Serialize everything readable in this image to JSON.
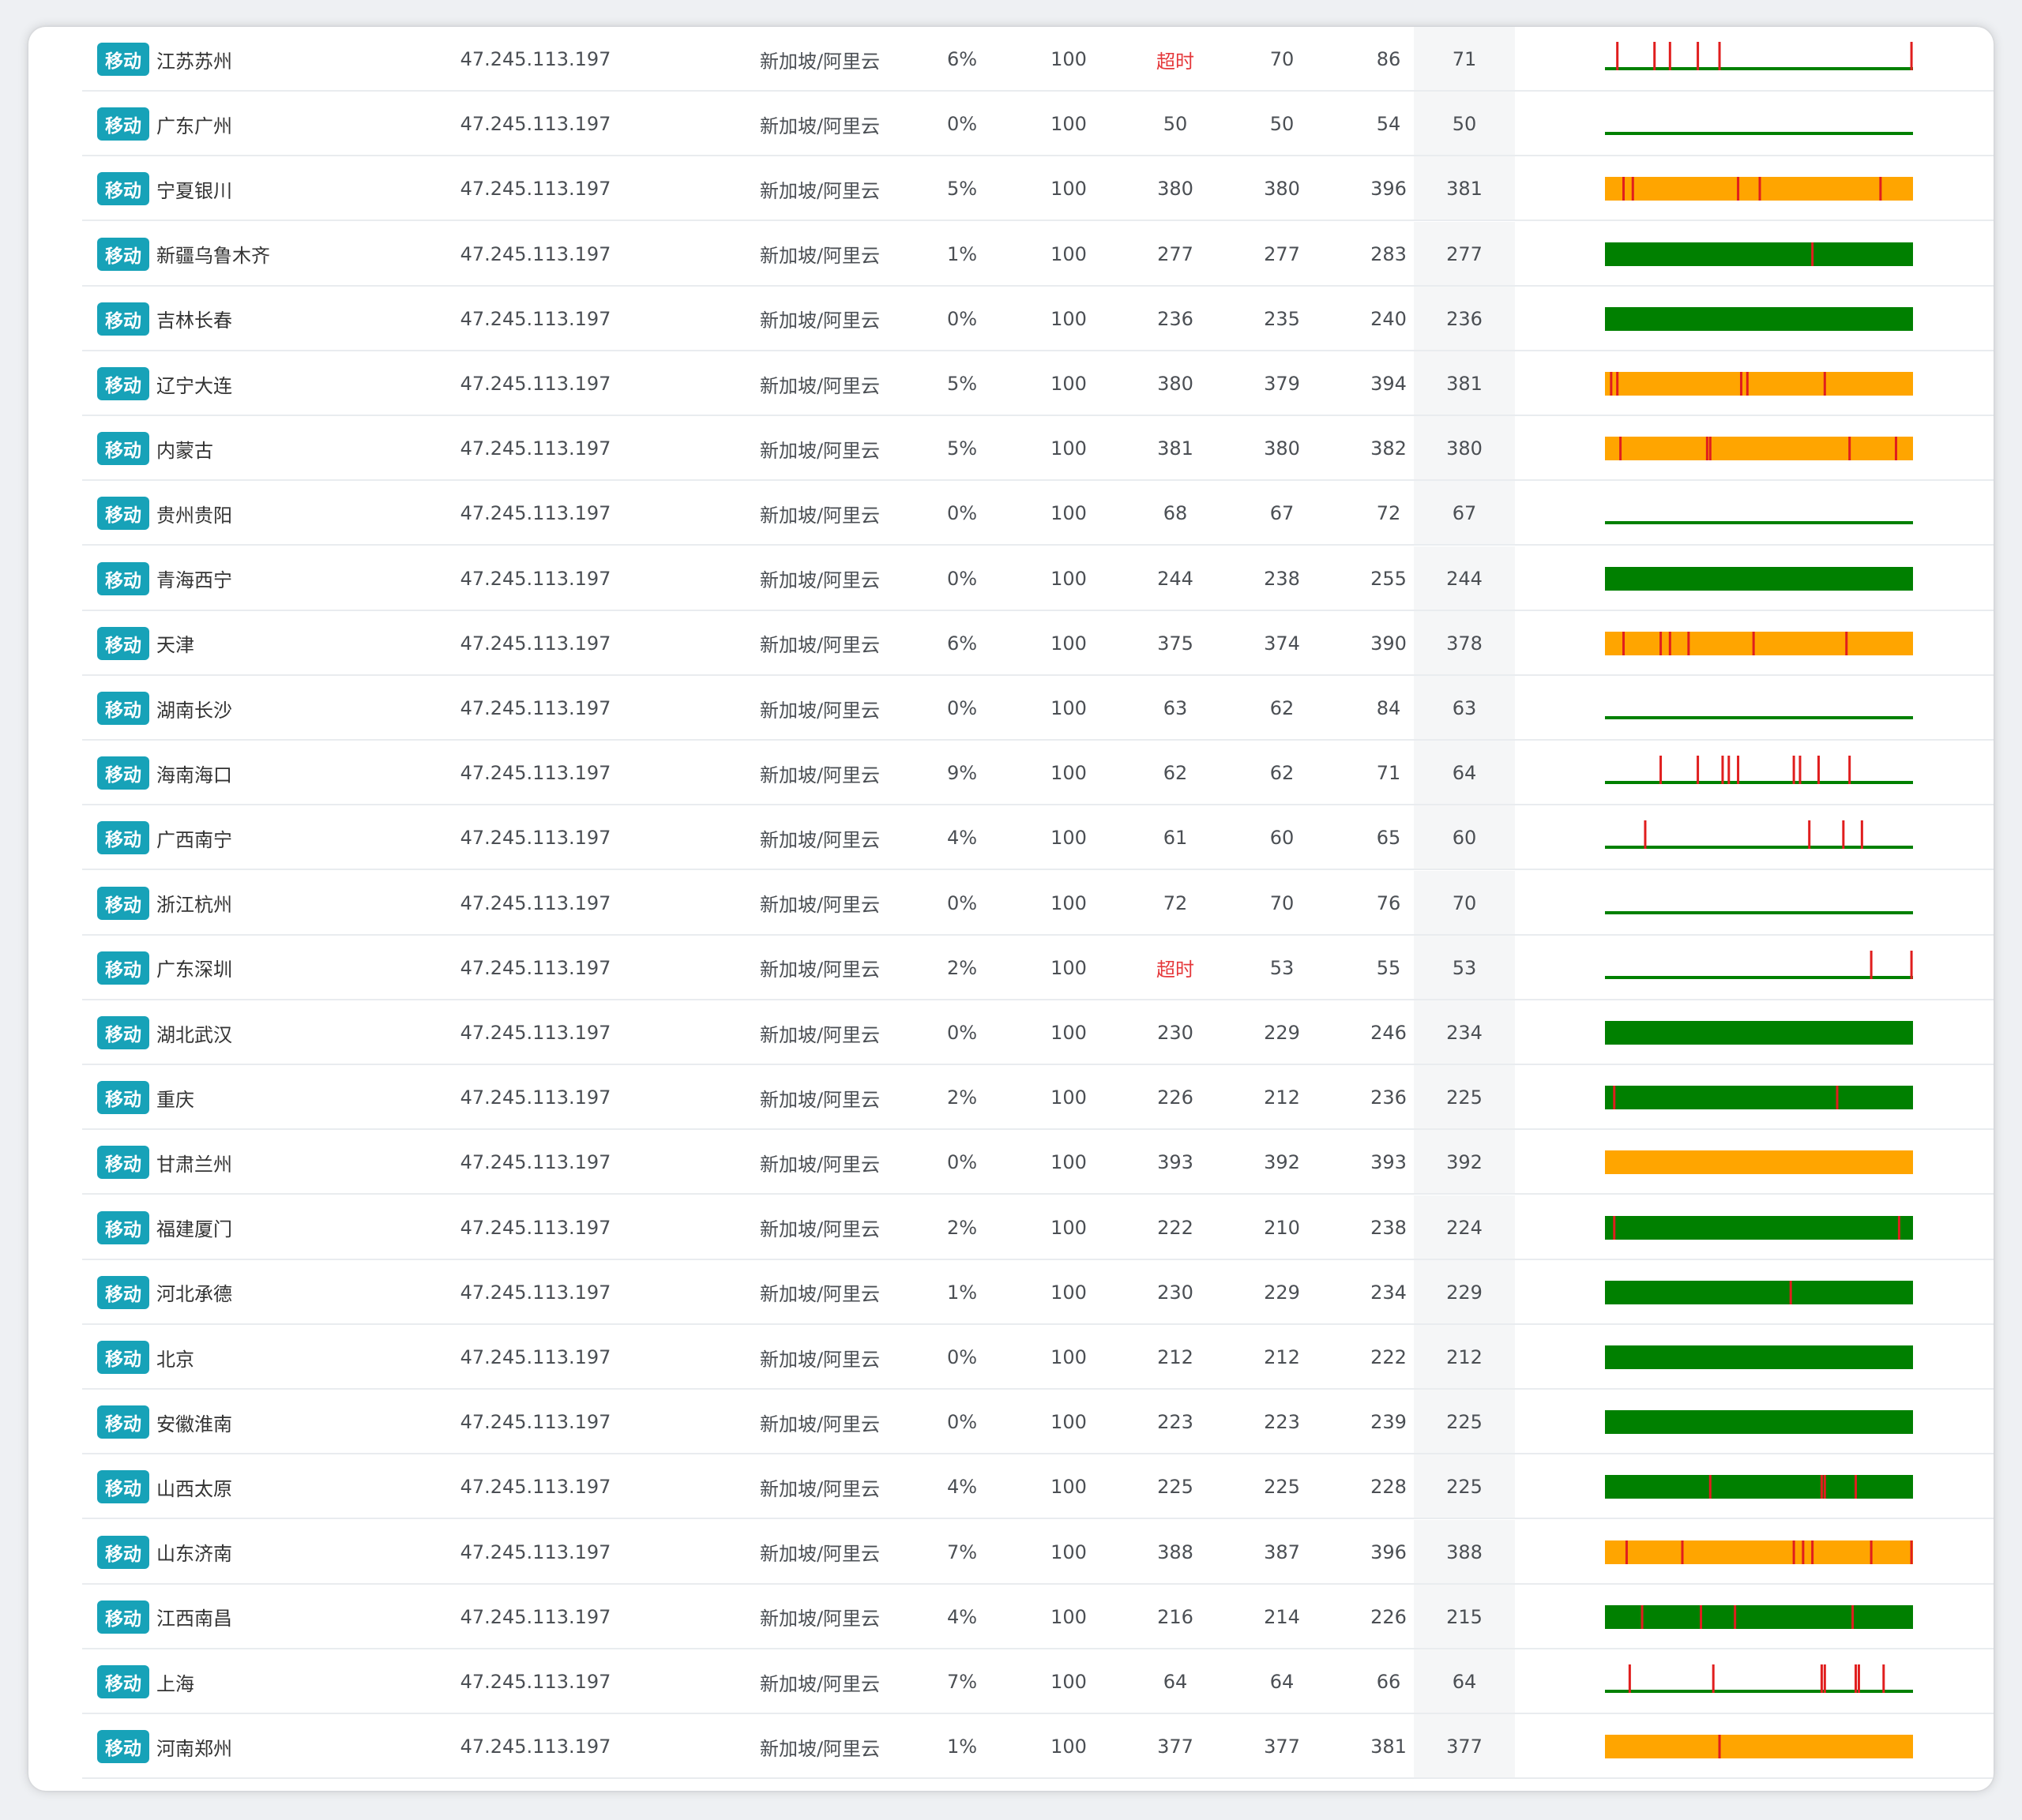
{
  "colors": {
    "badge": "#17a2b8",
    "ok": "#008000",
    "warn": "#ffa500",
    "loss": "#e01e1e",
    "timeout_text": "#e5383b"
  },
  "rows": [
    {
      "isp": "移动",
      "location": "江苏苏州",
      "ip": "47.245.113.197",
      "node": "新加坡/阿里云",
      "loss": "6%",
      "sent": "100",
      "last": "超时",
      "best": "70",
      "worst": "86",
      "avg": "71",
      "chart_color": "ok",
      "loss_marks": [
        0.04,
        0.16,
        0.21,
        0.3,
        0.37,
        0.99
      ]
    },
    {
      "isp": "移动",
      "location": "广东广州",
      "ip": "47.245.113.197",
      "node": "新加坡/阿里云",
      "loss": "0%",
      "sent": "100",
      "last": "50",
      "best": "50",
      "worst": "54",
      "avg": "50",
      "chart_color": "ok",
      "loss_marks": []
    },
    {
      "isp": "移动",
      "location": "宁夏银川",
      "ip": "47.245.113.197",
      "node": "新加坡/阿里云",
      "loss": "5%",
      "sent": "100",
      "last": "380",
      "best": "380",
      "worst": "396",
      "avg": "381",
      "chart_color": "warn",
      "loss_marks": [
        0.06,
        0.09,
        0.43,
        0.5,
        0.89
      ]
    },
    {
      "isp": "移动",
      "location": "新疆乌鲁木齐",
      "ip": "47.245.113.197",
      "node": "新加坡/阿里云",
      "loss": "1%",
      "sent": "100",
      "last": "277",
      "best": "277",
      "worst": "283",
      "avg": "277",
      "chart_color": "ok",
      "loss_marks": [
        0.67
      ]
    },
    {
      "isp": "移动",
      "location": "吉林长春",
      "ip": "47.245.113.197",
      "node": "新加坡/阿里云",
      "loss": "0%",
      "sent": "100",
      "last": "236",
      "best": "235",
      "worst": "240",
      "avg": "236",
      "chart_color": "ok",
      "loss_marks": []
    },
    {
      "isp": "移动",
      "location": "辽宁大连",
      "ip": "47.245.113.197",
      "node": "新加坡/阿里云",
      "loss": "5%",
      "sent": "100",
      "last": "380",
      "best": "379",
      "worst": "394",
      "avg": "381",
      "chart_color": "warn",
      "loss_marks": [
        0.02,
        0.04,
        0.44,
        0.46,
        0.71
      ]
    },
    {
      "isp": "移动",
      "location": "内蒙古",
      "ip": "47.245.113.197",
      "node": "新加坡/阿里云",
      "loss": "5%",
      "sent": "100",
      "last": "381",
      "best": "380",
      "worst": "382",
      "avg": "380",
      "chart_color": "warn",
      "loss_marks": [
        0.05,
        0.33,
        0.34,
        0.79,
        0.94
      ]
    },
    {
      "isp": "移动",
      "location": "贵州贵阳",
      "ip": "47.245.113.197",
      "node": "新加坡/阿里云",
      "loss": "0%",
      "sent": "100",
      "last": "68",
      "best": "67",
      "worst": "72",
      "avg": "67",
      "chart_color": "ok",
      "loss_marks": []
    },
    {
      "isp": "移动",
      "location": "青海西宁",
      "ip": "47.245.113.197",
      "node": "新加坡/阿里云",
      "loss": "0%",
      "sent": "100",
      "last": "244",
      "best": "238",
      "worst": "255",
      "avg": "244",
      "chart_color": "ok",
      "loss_marks": []
    },
    {
      "isp": "移动",
      "location": "天津",
      "ip": "47.245.113.197",
      "node": "新加坡/阿里云",
      "loss": "6%",
      "sent": "100",
      "last": "375",
      "best": "374",
      "worst": "390",
      "avg": "378",
      "chart_color": "warn",
      "loss_marks": [
        0.06,
        0.18,
        0.21,
        0.27,
        0.48,
        0.78
      ]
    },
    {
      "isp": "移动",
      "location": "湖南长沙",
      "ip": "47.245.113.197",
      "node": "新加坡/阿里云",
      "loss": "0%",
      "sent": "100",
      "last": "63",
      "best": "62",
      "worst": "84",
      "avg": "63",
      "chart_color": "ok",
      "loss_marks": []
    },
    {
      "isp": "移动",
      "location": "海南海口",
      "ip": "47.245.113.197",
      "node": "新加坡/阿里云",
      "loss": "9%",
      "sent": "100",
      "last": "62",
      "best": "62",
      "worst": "71",
      "avg": "64",
      "chart_color": "ok",
      "loss_marks": [
        0.18,
        0.3,
        0.38,
        0.4,
        0.43,
        0.61,
        0.63,
        0.69,
        0.79
      ]
    },
    {
      "isp": "移动",
      "location": "广西南宁",
      "ip": "47.245.113.197",
      "node": "新加坡/阿里云",
      "loss": "4%",
      "sent": "100",
      "last": "61",
      "best": "60",
      "worst": "65",
      "avg": "60",
      "chart_color": "ok",
      "loss_marks": [
        0.13,
        0.66,
        0.77,
        0.83
      ]
    },
    {
      "isp": "移动",
      "location": "浙江杭州",
      "ip": "47.245.113.197",
      "node": "新加坡/阿里云",
      "loss": "0%",
      "sent": "100",
      "last": "72",
      "best": "70",
      "worst": "76",
      "avg": "70",
      "chart_color": "ok",
      "loss_marks": []
    },
    {
      "isp": "移动",
      "location": "广东深圳",
      "ip": "47.245.113.197",
      "node": "新加坡/阿里云",
      "loss": "2%",
      "sent": "100",
      "last": "超时",
      "best": "53",
      "worst": "55",
      "avg": "53",
      "chart_color": "ok",
      "loss_marks": [
        0.86,
        0.99
      ]
    },
    {
      "isp": "移动",
      "location": "湖北武汉",
      "ip": "47.245.113.197",
      "node": "新加坡/阿里云",
      "loss": "0%",
      "sent": "100",
      "last": "230",
      "best": "229",
      "worst": "246",
      "avg": "234",
      "chart_color": "ok",
      "loss_marks": []
    },
    {
      "isp": "移动",
      "location": "重庆",
      "ip": "47.245.113.197",
      "node": "新加坡/阿里云",
      "loss": "2%",
      "sent": "100",
      "last": "226",
      "best": "212",
      "worst": "236",
      "avg": "225",
      "chart_color": "ok",
      "loss_marks": [
        0.03,
        0.75
      ]
    },
    {
      "isp": "移动",
      "location": "甘肃兰州",
      "ip": "47.245.113.197",
      "node": "新加坡/阿里云",
      "loss": "0%",
      "sent": "100",
      "last": "393",
      "best": "392",
      "worst": "393",
      "avg": "392",
      "chart_color": "warn",
      "loss_marks": []
    },
    {
      "isp": "移动",
      "location": "福建厦门",
      "ip": "47.245.113.197",
      "node": "新加坡/阿里云",
      "loss": "2%",
      "sent": "100",
      "last": "222",
      "best": "210",
      "worst": "238",
      "avg": "224",
      "chart_color": "ok",
      "loss_marks": [
        0.03,
        0.95
      ]
    },
    {
      "isp": "移动",
      "location": "河北承德",
      "ip": "47.245.113.197",
      "node": "新加坡/阿里云",
      "loss": "1%",
      "sent": "100",
      "last": "230",
      "best": "229",
      "worst": "234",
      "avg": "229",
      "chart_color": "ok",
      "loss_marks": [
        0.6
      ]
    },
    {
      "isp": "移动",
      "location": "北京",
      "ip": "47.245.113.197",
      "node": "新加坡/阿里云",
      "loss": "0%",
      "sent": "100",
      "last": "212",
      "best": "212",
      "worst": "222",
      "avg": "212",
      "chart_color": "ok",
      "loss_marks": []
    },
    {
      "isp": "移动",
      "location": "安徽淮南",
      "ip": "47.245.113.197",
      "node": "新加坡/阿里云",
      "loss": "0%",
      "sent": "100",
      "last": "223",
      "best": "223",
      "worst": "239",
      "avg": "225",
      "chart_color": "ok",
      "loss_marks": []
    },
    {
      "isp": "移动",
      "location": "山西太原",
      "ip": "47.245.113.197",
      "node": "新加坡/阿里云",
      "loss": "4%",
      "sent": "100",
      "last": "225",
      "best": "225",
      "worst": "228",
      "avg": "225",
      "chart_color": "ok",
      "loss_marks": [
        0.34,
        0.7,
        0.71,
        0.81
      ]
    },
    {
      "isp": "移动",
      "location": "山东济南",
      "ip": "47.245.113.197",
      "node": "新加坡/阿里云",
      "loss": "7%",
      "sent": "100",
      "last": "388",
      "best": "387",
      "worst": "396",
      "avg": "388",
      "chart_color": "warn",
      "loss_marks": [
        0.07,
        0.25,
        0.61,
        0.64,
        0.67,
        0.86,
        0.99
      ]
    },
    {
      "isp": "移动",
      "location": "江西南昌",
      "ip": "47.245.113.197",
      "node": "新加坡/阿里云",
      "loss": "4%",
      "sent": "100",
      "last": "216",
      "best": "214",
      "worst": "226",
      "avg": "215",
      "chart_color": "ok",
      "loss_marks": [
        0.12,
        0.31,
        0.42,
        0.8
      ]
    },
    {
      "isp": "移动",
      "location": "上海",
      "ip": "47.245.113.197",
      "node": "新加坡/阿里云",
      "loss": "7%",
      "sent": "100",
      "last": "64",
      "best": "64",
      "worst": "66",
      "avg": "64",
      "chart_color": "ok",
      "loss_marks": [
        0.08,
        0.35,
        0.7,
        0.71,
        0.81,
        0.82,
        0.9
      ]
    },
    {
      "isp": "移动",
      "location": "河南郑州",
      "ip": "47.245.113.197",
      "node": "新加坡/阿里云",
      "loss": "1%",
      "sent": "100",
      "last": "377",
      "best": "377",
      "worst": "381",
      "avg": "377",
      "chart_color": "warn",
      "loss_marks": [
        0.37
      ]
    }
  ]
}
